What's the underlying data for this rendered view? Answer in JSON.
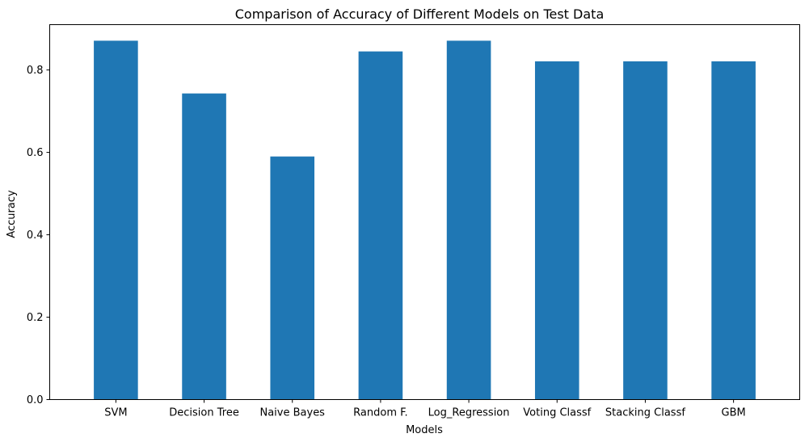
{
  "chart_data": {
    "type": "bar",
    "title": "Comparison of Accuracy of Different Models on Test Data",
    "xlabel": "Models",
    "ylabel": "Accuracy",
    "categories": [
      "SVM",
      "Decision Tree",
      "Naive Bayes",
      "Random F.",
      "Log_Regression",
      "Voting Classf",
      "Stacking Classf",
      "GBM"
    ],
    "values": [
      0.871,
      0.743,
      0.59,
      0.845,
      0.871,
      0.821,
      0.821,
      0.821
    ],
    "ylim": [
      0,
      0.91
    ],
    "yticks": [
      0.0,
      0.2,
      0.4,
      0.6,
      0.8
    ],
    "ytick_labels": [
      "0.0",
      "0.2",
      "0.4",
      "0.6",
      "0.8"
    ],
    "bar_color": "#1f77b4",
    "grid": false,
    "legend": "none"
  }
}
